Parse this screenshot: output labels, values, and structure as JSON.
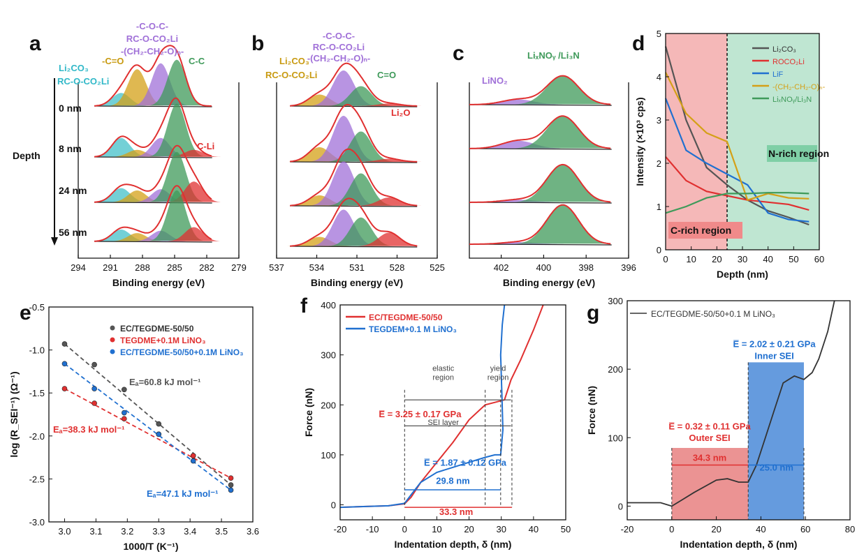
{
  "colors": {
    "red": "#e03030",
    "grey": "#555555",
    "blue": "#2070d0",
    "gold": "#d4a017",
    "purple": "#a070d8",
    "green": "#3f9a5a",
    "cyan": "#44c0c8",
    "cyan_text": "#30b8c8",
    "gold_text": "#c89a10",
    "purple_text": "#a070d8",
    "green_text": "#3f9a5a",
    "c_region": "#f5b8b8",
    "n_region": "#bfe6d2"
  },
  "chart_data": [
    {
      "panel": "a",
      "type": "area",
      "xlabel": "Binding energy (eV)",
      "xlim": [
        294,
        279
      ],
      "xticks": [
        "294",
        "291",
        "288",
        "285",
        "282",
        "279"
      ],
      "depth_label": "Depth",
      "depths": [
        "0 nm",
        "8 nm",
        "24 nm",
        "56 nm"
      ],
      "components": [
        "Li2CO3 / RC-O-CO2Li",
        "-C=O",
        "RC-O-CO2Li / -C-O-C- / -(CH2-CH2-O)n-",
        "C-C",
        "C-Li"
      ],
      "peak_centers_eV": [
        290.0,
        288.5,
        286.3,
        284.8,
        283.2
      ],
      "peak_heights": [
        [
          0.22,
          0.62,
          0.72,
          0.78,
          0.0
        ],
        [
          0.32,
          0.12,
          0.32,
          0.9,
          0.12
        ],
        [
          0.24,
          0.2,
          0.22,
          0.85,
          0.35
        ],
        [
          0.2,
          0.14,
          0.18,
          0.86,
          0.24
        ]
      ],
      "annotations": {
        "li2co3": "Li₂CO₃",
        "rcoco2li": "RC-O-CO₂Li",
        "co": "-C=O",
        "coc": "-C-O-C-",
        "rc": "RC-O-CO₂Li",
        "peo": "-(CH₂-CH₂-O)ₙ-",
        "cc": "C-C",
        "cli": "C-Li"
      }
    },
    {
      "panel": "b",
      "type": "area",
      "xlabel": "Binding energy (eV)",
      "xlim": [
        537,
        525
      ],
      "xticks": [
        "537",
        "534",
        "531",
        "528",
        "525"
      ],
      "peak_centers_eV": [
        533.8,
        532.0,
        530.7,
        528.6
      ],
      "peak_heights": [
        [
          0.22,
          0.68,
          0.38,
          0.05
        ],
        [
          0.28,
          0.88,
          0.58,
          0.06
        ],
        [
          0.2,
          0.85,
          0.62,
          0.16
        ],
        [
          0.18,
          0.7,
          0.55,
          0.26
        ]
      ],
      "annotations": {
        "li2co3": "Li₂CO₃",
        "rcoco2li": "RC-O-CO₂Li",
        "coc": "-C-O-C-",
        "rc": "RC-O-CO₂Li",
        "peo": "-(CH₂-CH₂-O)ₙ-",
        "co": "C=O",
        "li2o": "Li₂O"
      }
    },
    {
      "panel": "c",
      "type": "area",
      "xlabel": "Binding energy (eV)",
      "xlim": [
        403.5,
        396
      ],
      "xticks": [
        "402",
        "400",
        "398",
        "396"
      ],
      "peak_centers_eV": [
        401.2,
        399.1
      ],
      "peak_heights": [
        [
          0.1,
          0.55
        ],
        [
          0.15,
          0.62
        ],
        [
          0.05,
          0.72
        ],
        [
          0.04,
          0.75
        ]
      ],
      "annotations": {
        "lino2": "LiNO₂",
        "lixnoy": "LiₓNOᵧ /Li₃N"
      }
    },
    {
      "panel": "d",
      "type": "line",
      "xlabel": "Depth (nm)",
      "ylabel": "Intensity (×10³ cps)",
      "xlim": [
        0,
        60
      ],
      "ylim": [
        0,
        5
      ],
      "xticks": [
        "0",
        "10",
        "20",
        "30",
        "40",
        "50",
        "60"
      ],
      "yticks": [
        "0",
        "1",
        "2",
        "3",
        "4",
        "5"
      ],
      "regions": {
        "c_rich": "C-rich region",
        "n_rich": "N-rich region",
        "boundary": 24
      },
      "series": [
        {
          "name": "Li₂CO₃",
          "x": [
            0,
            8,
            16,
            24,
            32,
            40,
            48,
            56
          ],
          "y": [
            4.7,
            3.0,
            1.9,
            1.5,
            1.15,
            0.9,
            0.75,
            0.58
          ]
        },
        {
          "name": "ROCO₂Li",
          "x": [
            0,
            8,
            16,
            24,
            32,
            40,
            48,
            56
          ],
          "y": [
            2.15,
            1.6,
            1.35,
            1.25,
            1.15,
            1.1,
            1.05,
            0.92
          ]
        },
        {
          "name": "LiF",
          "x": [
            0,
            8,
            16,
            24,
            32,
            40,
            48,
            56
          ],
          "y": [
            3.5,
            2.3,
            2.0,
            1.75,
            1.5,
            0.85,
            0.7,
            0.65
          ]
        },
        {
          "name": "-(CH₂-CH₂-O)ₙ-",
          "x": [
            0,
            8,
            16,
            24,
            32,
            40,
            48,
            56
          ],
          "y": [
            4.1,
            3.15,
            2.7,
            2.5,
            1.15,
            1.3,
            1.2,
            1.18
          ]
        },
        {
          "name": "LiₓNOᵧ/Li₃N",
          "x": [
            0,
            8,
            16,
            24,
            32,
            40,
            48,
            56
          ],
          "y": [
            0.85,
            1.0,
            1.2,
            1.3,
            1.3,
            1.32,
            1.32,
            1.3
          ]
        }
      ]
    },
    {
      "panel": "e",
      "type": "scatter",
      "xlabel": "1000/T (K⁻¹)",
      "ylabel": "log (R_SEI⁻¹) (Ω⁻¹)",
      "xlim": [
        2.95,
        3.6
      ],
      "ylim": [
        -3.0,
        -0.5
      ],
      "xticks": [
        "3.0",
        "3.1",
        "3.2",
        "3.3",
        "3.4",
        "3.5",
        "3.6"
      ],
      "yticks": [
        "-3.0",
        "-2.5",
        "-2.0",
        "-1.5",
        "-1.0",
        "-0.5"
      ],
      "series": [
        {
          "name": "EC/TEGDME-50/50",
          "x": [
            3.0,
            3.095,
            3.19,
            3.3,
            3.41,
            3.53
          ],
          "y": [
            -0.93,
            -1.17,
            -1.46,
            -1.86,
            -2.23,
            -2.57
          ],
          "ea": "Eₐ=60.8 kJ mol⁻¹"
        },
        {
          "name": "TEGDME+0.1M LiNO₃",
          "x": [
            3.0,
            3.095,
            3.19,
            3.3,
            3.41,
            3.53
          ],
          "y": [
            -1.45,
            -1.62,
            -1.8,
            -1.98,
            -2.23,
            -2.49
          ],
          "ea": "Eₐ=38.3 kJ mol⁻¹"
        },
        {
          "name": "EC/TEGDME-50/50+0.1M LiNO₃",
          "x": [
            3.0,
            3.095,
            3.19,
            3.3,
            3.41,
            3.53
          ],
          "y": [
            -1.16,
            -1.45,
            -1.73,
            -1.98,
            -2.29,
            -2.63
          ],
          "ea": "Eₐ=47.1 kJ mol⁻¹"
        }
      ]
    },
    {
      "panel": "f",
      "type": "line",
      "xlabel": "Indentation depth, δ (nm)",
      "ylabel": "Force (nN)",
      "xlim": [
        -20,
        50
      ],
      "ylim": [
        -30,
        400
      ],
      "xticks": [
        "-20",
        "-10",
        "0",
        "10",
        "20",
        "30",
        "40",
        "50"
      ],
      "yticks": [
        "0",
        "100",
        "200",
        "300",
        "400"
      ],
      "series": [
        {
          "name": "EC/TEGDME-50/50",
          "x": [
            -20,
            -5,
            0,
            2,
            5,
            10,
            15,
            20,
            25,
            28,
            31,
            33,
            36,
            40,
            43
          ],
          "y": [
            -5,
            -2,
            2,
            15,
            45,
            85,
            125,
            170,
            200,
            205,
            210,
            250,
            290,
            350,
            400
          ]
        },
        {
          "name": "TEGDEM+0.1 M LiNO₃",
          "x": [
            -20,
            -5,
            0,
            2,
            5,
            10,
            15,
            20,
            25,
            28,
            29.8,
            30.5,
            30.2,
            29.8,
            30.3,
            31
          ],
          "y": [
            -5,
            -2,
            3,
            20,
            45,
            65,
            75,
            85,
            95,
            100,
            100,
            150,
            220,
            300,
            360,
            400
          ]
        }
      ],
      "annotations": {
        "elastic": "elastic",
        "elastic2": "region",
        "yield": "yield",
        "yield2": "region",
        "sei": "SEI layer",
        "mod_red": "E̅ = 3.25 ± 0.17 GPa",
        "mod_blue": "E̅ = 1.87 ± 0.12 GPa",
        "d_blue": "29.8 nm",
        "d_red": "33.3 nm"
      }
    },
    {
      "panel": "g",
      "type": "line",
      "xlabel": "Indentation depth, δ (nm)",
      "ylabel": "Force (nN)",
      "xlim": [
        -20,
        80
      ],
      "ylim": [
        -20,
        300
      ],
      "xticks": [
        "-20",
        "0",
        "20",
        "40",
        "60",
        "80"
      ],
      "yticks": [
        "0",
        "100",
        "200",
        "300"
      ],
      "series": [
        {
          "name": "EC/TEGDME-50/50+0.1 M LiNO₃",
          "x": [
            -20,
            -5,
            0,
            5,
            10,
            20,
            25,
            30,
            34.3,
            38,
            42,
            46,
            50,
            55,
            59.3,
            63,
            66,
            70,
            73
          ],
          "y": [
            5,
            5,
            0,
            10,
            20,
            38,
            40,
            35,
            35,
            60,
            100,
            140,
            180,
            190,
            185,
            195,
            215,
            255,
            300
          ]
        }
      ],
      "annotations": {
        "outer_mod": "E̅ = 0.32 ± 0.11 GPa",
        "outer": "Outer SEI",
        "inner_mod": "E̅ = 2.02 ± 0.21 GPa",
        "inner": "Inner SEI",
        "d_outer": "34.3 nm",
        "d_inner": "25.0 nm"
      }
    }
  ]
}
